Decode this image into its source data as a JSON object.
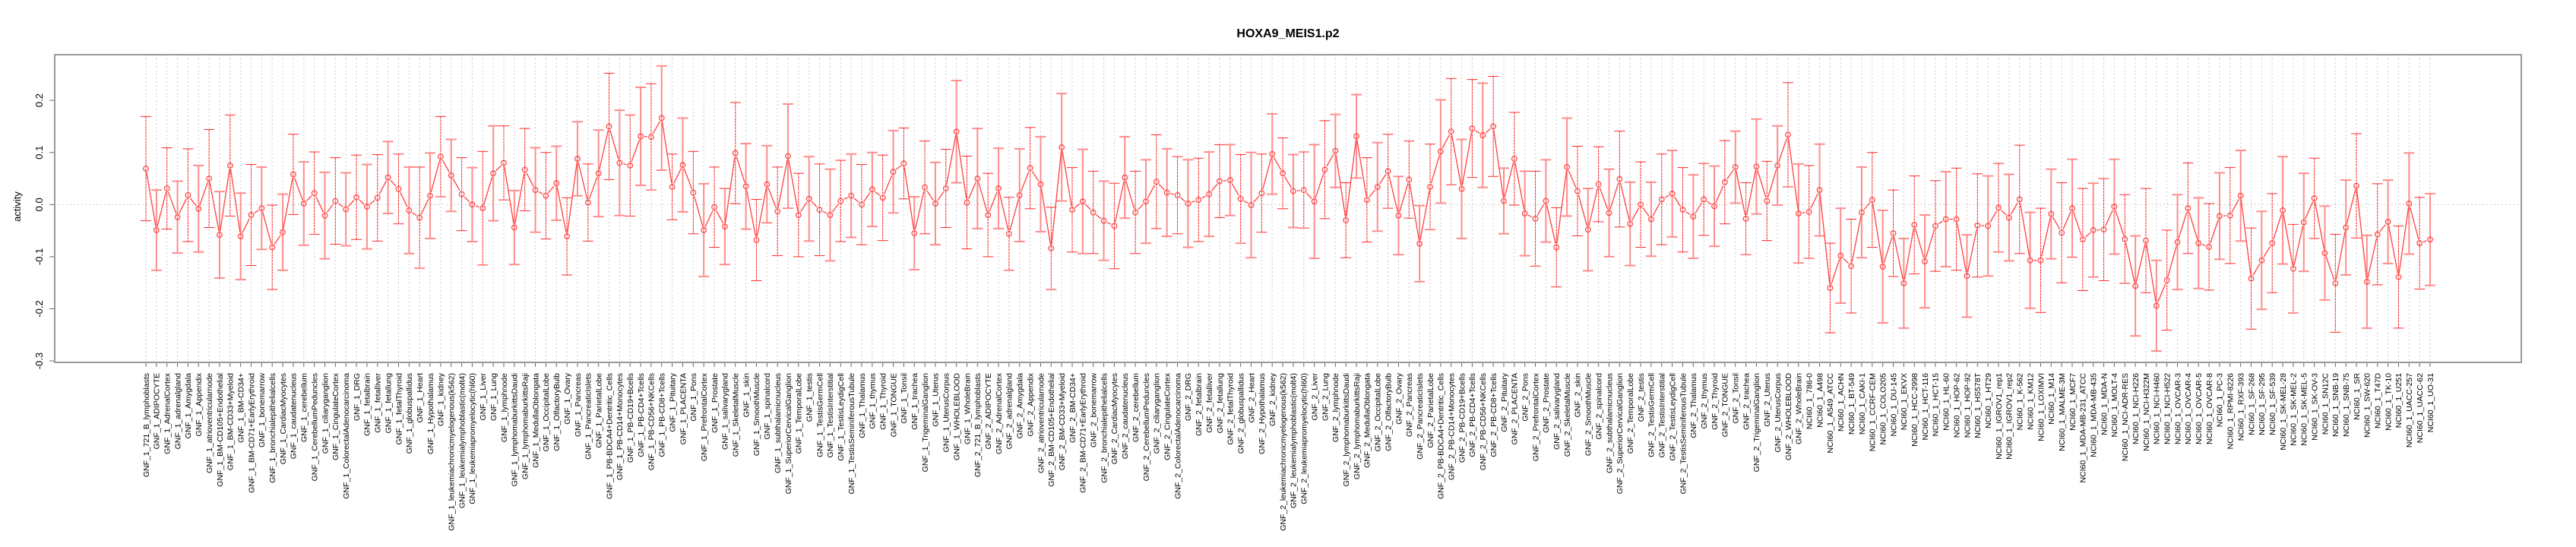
{
  "chart_data": {
    "type": "line",
    "title": "HOXA9_MEIS1.p2",
    "xlabel": "",
    "ylabel": "activity",
    "ylim": [
      -0.304,
      0.288
    ],
    "yticks": [
      "-0.3",
      "-0.2",
      "-0.1",
      "0.0",
      "0.1",
      "0.2"
    ],
    "ytick_values": [
      -0.3,
      -0.2,
      -0.1,
      0.0,
      0.1,
      0.2
    ],
    "grid": "dotted vertical per category, dotted horizontal at 0",
    "legend": "none",
    "colors": {
      "line": "#ff4040",
      "bar_a": "#ff2a2a",
      "bar_b": "#ff8c8c",
      "frame": "#999999",
      "grid": "#cccccc"
    },
    "categories": [
      "GNF_1_721_B_lymphoblasts",
      "GNF_1_ADIPOCYTE",
      "GNF_1_AdrenalCortex",
      "GNF_1_adrenalgland",
      "GNF_1_Amygdala",
      "GNF_1_Appendix",
      "GNF_1_atrioventricularnode",
      "GNF_1_BM-CD105+Endothelial",
      "GNF_1_BM-CD33+Myeloid",
      "GNF_1_BM-CD34+",
      "GNF_1_BM-CD71+EarlyErythroid",
      "GNF_1_bonemarrow",
      "GNF_1_bronchialepithelialcells",
      "GNF_1_CardiacMyocytes",
      "GNF_1_caudatenucleus",
      "GNF_1_cerebellum",
      "GNF_1_CerebellumPeduncles",
      "GNF_1_ciliaryganglion",
      "GNF_1_CingulateCortex",
      "GNF_1_ColorectalAdenocarcinoma",
      "GNF_1_DRG",
      "GNF_1_fetalbrain",
      "GNF_1_fetalliver",
      "GNF_1_fetallung",
      "GNF_1_fetalThyroid",
      "GNF_1_globuspallidus",
      "GNF_1_Heart",
      "GNF_1_Hypothalamus",
      "GNF_1_kidney",
      "GNF_1_leukemiachronicmyelogenous(k562)",
      "GNF_1_leukemialymphoblastic(molt4)",
      "GNF_1_leukemiapromyelocytic(hl60)",
      "GNF_1_Liver",
      "GNF_1_Lung",
      "GNF_1_lymphnode",
      "GNF_1_lymphomaburkittsDaudi",
      "GNF_1_lymphomaburkittsRaji",
      "GNF_1_MedullaOblongata",
      "GNF_1_OccipitalLobe",
      "GNF_1_OlfactoryBulb",
      "GNF_1_Ovary",
      "GNF_1_Pancreas",
      "GNF_1_PancreaticIslets",
      "GNF_1_ParietalLobe",
      "GNF_1_PB-BDCA4+Dentritic_Cells",
      "GNF_1_PB-CD14+Monocytes",
      "GNF_1_PB-CD19+Bcells",
      "GNF_1_PB-CD4+Tcells",
      "GNF_1_PB-CD56+NKCells",
      "GNF_1_PB-CD8+Tcells",
      "GNF_1_Pituitary",
      "GNF_1_PLACENTA",
      "GNF_1_Pons",
      "GNF_1_PrefrontalCortex",
      "GNF_1_Prostate",
      "GNF_1_salivarygland",
      "GNF_1_SkeletalMuscle",
      "GNF_1_skin",
      "GNF_1_SmoothMuscle",
      "GNF_1_spinalcord",
      "GNF_1_subthalamicnucleus",
      "GNF_1_SuperiorCervicalGanglion",
      "GNF_1_TemporalLobe",
      "GNF_1_testis",
      "GNF_1_TestisGermCell",
      "GNF_1_TestisInterstitial",
      "GNF_1_TestisLeydigCell",
      "GNF_1_TestisSeminiferousTubule",
      "GNF_1_Thalamus",
      "GNF_1_thymus",
      "GNF_1_Thyroid",
      "GNF_1_TONGUE",
      "GNF_1_Tonsil",
      "GNF_1_trachea",
      "GNF_1_TrigeminalGanglion",
      "GNF_1_Uterus",
      "GNF_1_UterusCorpus",
      "GNF_1_WHOLEBLOOD",
      "GNF_1_WholeBrain",
      "GNF_2_721_B_lymphoblasts",
      "GNF_2_ADIPOCYTE",
      "GNF_2_AdrenalCortex",
      "GNF_2_adrenalgland",
      "GNF_2_Amygdala",
      "GNF_2_Appendix",
      "GNF_2_atrioventricularnode",
      "GNF_2_BM-CD105+Endothelial",
      "GNF_2_BM-CD33+Myeloid",
      "GNF_2_BM-CD34+",
      "GNF_2_BM-CD71+EarlyErythroid",
      "GNF_2_bonemarrow",
      "GNF_2_bronchialepithelialcells",
      "GNF_2_CardiacMyocytes",
      "GNF_2_caudatenucleus",
      "GNF_2_cerebellum",
      "GNF_2_CerebellumPeduncles",
      "GNF_2_ciliaryganglion",
      "GNF_2_CingulateCortex",
      "GNF_2_ColorectalAdenocarcinoma",
      "GNF_2_DRG",
      "GNF_2_fetalbrain",
      "GNF_2_fetalliver",
      "GNF_2_fetallung",
      "GNF_2_fetalThyroid",
      "GNF_2_globuspallidus",
      "GNF_2_Heart",
      "GNF_2_Hypothalamus",
      "GNF_2_kidney",
      "GNF_2_leukemiachronicmyelogenous(k562)",
      "GNF_2_leukemialymphoblastic(molt4)",
      "GNF_2_leukemiapromyelocytic(hl60)",
      "GNF_2_Liver",
      "GNF_2_Lung",
      "GNF_2_lymphnode",
      "GNF_2_lymphomaburkittsDaudi",
      "GNF_2_lymphomaburkittsRaji",
      "GNF_2_MedullaOblongata",
      "GNF_2_OccipitalLobe",
      "GNF_2_OlfactoryBulb",
      "GNF_2_Ovary",
      "GNF_2_Pancreas",
      "GNF_2_PancreaticIslets",
      "GNF_2_ParietalLobe",
      "GNF_2_PB-BDCA4+Dentritic_Cells",
      "GNF_2_PB-CD14+Monocytes",
      "GNF_2_PB-CD19+Bcells",
      "GNF_2_PB-CD4+Tcells",
      "GNF_2_PB-CD56+NKCells",
      "GNF_2_PB-CD8+Tcells",
      "GNF_2_Pituitary",
      "GNF_2_PLACENTA",
      "GNF_2_Pons",
      "GNF_2_PrefrontalCortex",
      "GNF_2_Prostate",
      "GNF_2_salivarygland",
      "GNF_2_SkeletalMuscle",
      "GNF_2_skin",
      "GNF_2_SmoothMuscle",
      "GNF_2_spinalcord",
      "GNF_2_subthalamicnucleus",
      "GNF_2_SuperiorCervicalGanglion",
      "GNF_2_TemporalLobe",
      "GNF_2_testis",
      "GNF_2_TestisGermCell",
      "GNF_2_TestisInterstitial",
      "GNF_2_TestisLeydigCell",
      "GNF_2_TestisSeminiferousTubule",
      "GNF_2_Thalamus",
      "GNF_2_thymus",
      "GNF_2_Thyroid",
      "GNF_2_TONGUE",
      "GNF_2_Tonsil",
      "GNF_2_trachea",
      "GNF_2_TrigeminalGanglion",
      "GNF_2_Uterus",
      "GNF_2_UterusCorpus",
      "GNF_2_WHOLEBLOOD",
      "GNF_2_WholeBrain",
      "NCI60_1_786-0",
      "NCI60_1_A498",
      "NCI60_1_A549_ATCC",
      "NCI60_1_ACHN",
      "NCI60_1_BT-549",
      "NCI60_1_CAKI-1",
      "NCI60_1_CCRF-CEM",
      "NCI60_1_COLO205",
      "NCI60_1_DU-145",
      "NCI60_1_EKVX",
      "NCI60_1_HCC-2998",
      "NCI60_1_HCT-116",
      "NCI60_1_HCT-15",
      "NCI60_1_HL-60",
      "NCI60_1_HOP-62",
      "NCI60_1_HOP-92",
      "NCI60_1_HS578T",
      "NCI60_1_HT29",
      "NCI60_1_IGROV1_rep1",
      "NCI60_1_IGROV1_rep2",
      "NCI60_1_K-562",
      "NCI60_1_KM12",
      "NCI60_1_LOXIMVI",
      "NCI60_1_M14",
      "NCI60_1_MALME-3M",
      "NCI60_1_MCF7",
      "NCI60_1_MDA-MB-231_ATCC",
      "NCI60_1_MDA-MB-435",
      "NCI60_1_MDA-N",
      "NCI60_1_MOLT-4",
      "NCI60_1_NCI-ADR-RES",
      "NCI60_1_NCI-H226",
      "NCI60_1_NCI-H322M",
      "NCI60_1_NCI-H460",
      "NCI60_1_NCI-H522",
      "NCI60_1_OVCAR-3",
      "NCI60_1_OVCAR-4",
      "NCI60_1_OVCAR-5",
      "NCI60_1_OVCAR-8",
      "NCI60_1_PC-3",
      "NCI60_1_RPMI-8226",
      "NCI60_1_RXF-393",
      "NCI60_1_SF-268",
      "NCI60_1_SF-295",
      "NCI60_1_SF-539",
      "NCI60_1_SK-MEL-28",
      "NCI60_1_SK-MEL-2",
      "NCI60_1_SK-MEL-5",
      "NCI60_1_SK-OV-3",
      "NCI60_1_SN12C",
      "NCI60_1_SNB-19",
      "NCI60_1_SNB-75",
      "NCI60_1_SR",
      "NCI60_1_SW-620",
      "NCI60_1_T47D",
      "NCI60_1_TK-10",
      "NCI60_1_U251",
      "NCI60_1_UACC-257",
      "NCI60_1_UACC-62",
      "NCI60_1_UO-31"
    ],
    "values": [
      0.069,
      -0.049,
      0.031,
      -0.024,
      0.018,
      -0.008,
      0.05,
      -0.058,
      0.075,
      -0.061,
      -0.02,
      -0.007,
      -0.082,
      -0.053,
      0.058,
      0.002,
      0.022,
      -0.021,
      0.007,
      -0.009,
      0.014,
      -0.004,
      0.013,
      0.052,
      0.03,
      -0.011,
      -0.025,
      0.017,
      0.092,
      0.056,
      0.02,
      0.0,
      -0.007,
      0.06,
      0.08,
      -0.044,
      0.067,
      0.028,
      0.017,
      0.041,
      -0.061,
      0.088,
      0.004,
      0.06,
      0.15,
      0.08,
      0.075,
      0.131,
      0.13,
      0.166,
      0.034,
      0.076,
      0.023,
      -0.049,
      -0.005,
      -0.042,
      0.099,
      0.035,
      -0.068,
      0.039,
      -0.013,
      0.093,
      -0.02,
      0.011,
      -0.01,
      -0.02,
      0.007,
      0.017,
      0.0,
      0.029,
      0.013,
      0.063,
      0.079,
      -0.055,
      0.033,
      0.002,
      0.031,
      0.14,
      0.004,
      0.05,
      -0.02,
      0.031,
      -0.056,
      0.018,
      0.07,
      0.039,
      -0.084,
      0.11,
      -0.01,
      0.006,
      -0.015,
      -0.031,
      -0.041,
      0.052,
      -0.015,
      0.006,
      0.044,
      0.023,
      0.018,
      0.002,
      0.009,
      0.02,
      0.045,
      0.047,
      0.011,
      -0.001,
      0.022,
      0.097,
      0.06,
      0.026,
      0.028,
      0.006,
      0.067,
      0.103,
      -0.03,
      0.131,
      0.009,
      0.034,
      0.064,
      -0.021,
      0.048,
      -0.075,
      0.034,
      0.102,
      0.14,
      0.03,
      0.146,
      0.133,
      0.15,
      0.007,
      0.088,
      -0.017,
      -0.027,
      0.007,
      -0.082,
      0.072,
      0.026,
      -0.048,
      0.039,
      -0.016,
      0.049,
      -0.037,
      0.0,
      -0.028,
      0.01,
      0.021,
      -0.01,
      -0.023,
      0.01,
      -0.003,
      0.043,
      0.072,
      -0.027,
      0.073,
      0.007,
      0.075,
      0.134,
      -0.017,
      -0.014,
      0.028,
      -0.16,
      -0.098,
      -0.118,
      -0.015,
      0.009,
      -0.119,
      -0.055,
      -0.151,
      -0.039,
      -0.109,
      -0.041,
      -0.028,
      -0.028,
      -0.137,
      -0.04,
      -0.041,
      -0.006,
      -0.025,
      0.01,
      -0.107,
      -0.107,
      -0.018,
      -0.054,
      -0.007,
      -0.067,
      -0.049,
      -0.048,
      -0.004,
      -0.066,
      -0.156,
      -0.069,
      -0.194,
      -0.145,
      -0.072,
      -0.007,
      -0.074,
      -0.081,
      -0.022,
      -0.021,
      0.017,
      -0.142,
      -0.107,
      -0.074,
      -0.011,
      -0.123,
      -0.034,
      0.012,
      -0.093,
      -0.151,
      -0.044,
      0.036,
      -0.148,
      -0.057,
      -0.033,
      -0.139,
      0.002,
      -0.074,
      -0.067
    ],
    "errors": [
      0.1,
      0.077,
      0.078,
      0.069,
      0.089,
      0.083,
      0.094,
      0.083,
      0.097,
      0.083,
      0.097,
      0.079,
      0.081,
      0.073,
      0.077,
      0.08,
      0.079,
      0.083,
      0.083,
      0.07,
      0.081,
      0.081,
      0.083,
      0.069,
      0.067,
      0.083,
      0.097,
      0.082,
      0.077,
      0.069,
      0.07,
      0.071,
      0.109,
      0.091,
      0.071,
      0.071,
      0.079,
      0.081,
      0.083,
      0.071,
      0.074,
      0.071,
      0.074,
      0.083,
      0.102,
      0.101,
      0.097,
      0.094,
      0.102,
      0.1,
      0.063,
      0.09,
      0.079,
      0.089,
      0.077,
      0.073,
      0.097,
      0.082,
      0.078,
      0.074,
      0.085,
      0.1,
      0.08,
      0.081,
      0.088,
      0.088,
      0.078,
      0.08,
      0.077,
      0.071,
      0.082,
      0.079,
      0.068,
      0.07,
      0.089,
      0.079,
      0.075,
      0.098,
      0.089,
      0.096,
      0.08,
      0.077,
      0.07,
      0.089,
      0.078,
      0.091,
      0.079,
      0.103,
      0.081,
      0.1,
      0.079,
      0.076,
      0.082,
      0.078,
      0.079,
      0.08,
      0.09,
      0.084,
      0.074,
      0.084,
      0.08,
      0.081,
      0.07,
      0.068,
      0.085,
      0.101,
      0.075,
      0.077,
      0.068,
      0.07,
      0.073,
      0.109,
      0.094,
      0.07,
      0.072,
      0.08,
      0.081,
      0.085,
      0.071,
      0.075,
      0.074,
      0.073,
      0.082,
      0.099,
      0.102,
      0.095,
      0.094,
      0.1,
      0.096,
      0.063,
      0.089,
      0.081,
      0.091,
      0.079,
      0.076,
      0.094,
      0.086,
      0.079,
      0.072,
      0.084,
      0.092,
      0.08,
      0.082,
      0.071,
      0.087,
      0.083,
      0.081,
      0.08,
      0.069,
      0.077,
      0.08,
      0.069,
      0.069,
      0.091,
      0.076,
      0.076,
      0.1,
      0.095,
      0.089,
      0.088,
      0.086,
      0.091,
      0.09,
      0.087,
      0.091,
      0.108,
      0.083,
      0.086,
      0.094,
      0.089,
      0.087,
      0.091,
      0.098,
      0.079,
      0.099,
      0.096,
      0.085,
      0.083,
      0.104,
      0.092,
      0.1,
      0.086,
      0.096,
      0.094,
      0.098,
      0.09,
      0.098,
      0.091,
      0.085,
      0.096,
      0.1,
      0.087,
      0.096,
      0.091,
      0.087,
      0.087,
      0.083,
      0.083,
      0.092,
      0.087,
      0.097,
      0.094,
      0.095,
      0.103,
      0.085,
      0.094,
      0.077,
      0.09,
      0.094,
      0.091,
      0.1,
      0.089,
      0.097,
      0.08,
      0.098,
      0.097,
      0.088,
      0.088
    ]
  }
}
